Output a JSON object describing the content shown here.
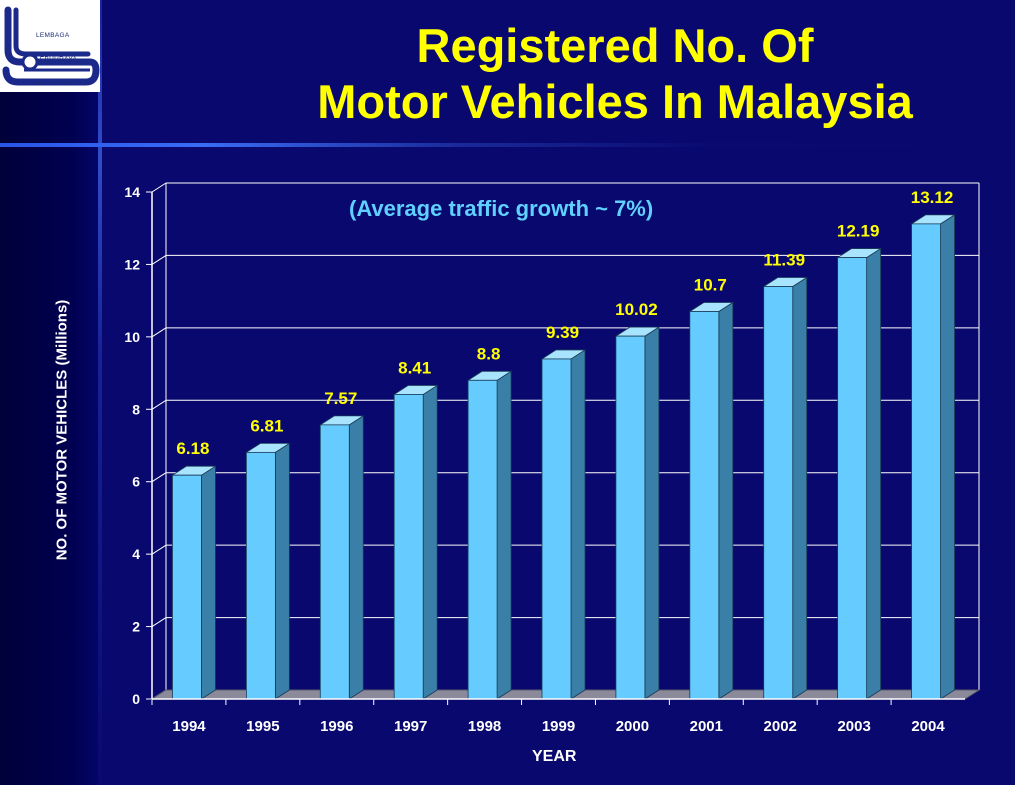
{
  "header": {
    "logo": {
      "name": "LLM logo",
      "text_lines": [
        "LEMBAGA",
        "LEBUHRAYA",
        "MALAYSIA"
      ]
    },
    "title_line1": "Registered No. Of",
    "title_line2": "Motor Vehicles In Malaysia"
  },
  "colors": {
    "background": "#08086e",
    "title": "#ffff00",
    "bar_front": "#66ccff",
    "bar_side": "#3a7fa8",
    "bar_top": "#a9e4ff",
    "data_label": "#ffff00",
    "annotation": "#5fd0ff"
  },
  "chart_data": {
    "type": "bar",
    "title": "Registered No. Of Motor Vehicles In Malaysia",
    "annotation": "(Average traffic growth ~ 7%)",
    "xlabel": "YEAR",
    "ylabel": "NO. OF MOTOR VEHICLES (Millions)",
    "categories": [
      "1994",
      "1995",
      "1996",
      "1997",
      "1998",
      "1999",
      "2000",
      "2001",
      "2002",
      "2003",
      "2004"
    ],
    "values": [
      6.18,
      6.81,
      7.57,
      8.41,
      8.8,
      9.39,
      10.02,
      10.7,
      11.39,
      12.19,
      13.12
    ],
    "data_labels": [
      "6.18",
      "6.81",
      "7.57",
      "8.41",
      "8.8",
      "9.39",
      "10.02",
      "10.7",
      "11.39",
      "12.19",
      "13.12"
    ],
    "ylim": [
      0,
      14
    ],
    "yticks": [
      0,
      2,
      4,
      6,
      8,
      10,
      12,
      14
    ],
    "grid": true,
    "legend": "none"
  }
}
